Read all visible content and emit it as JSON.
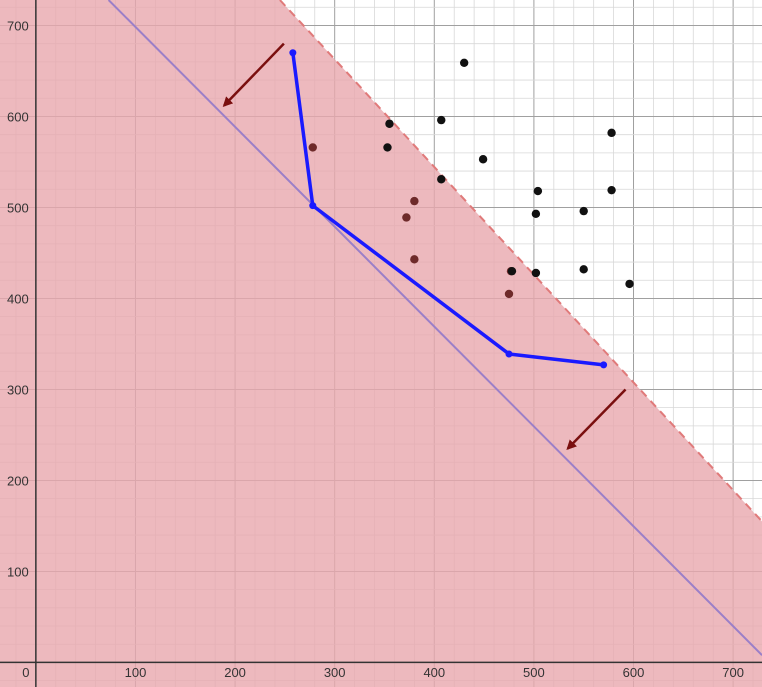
{
  "chart_data": {
    "type": "scatter",
    "title": "",
    "xlabel": "",
    "ylabel": "",
    "xlim": [
      -36,
      729
    ],
    "ylim": [
      -27,
      728
    ],
    "x_ticks": [
      0,
      100,
      200,
      300,
      400,
      500,
      600,
      700
    ],
    "y_ticks": [
      100,
      200,
      300,
      400,
      500,
      600,
      700
    ],
    "x_tick_labels": [
      "0",
      "100",
      "200",
      "300",
      "400",
      "500",
      "600",
      "700"
    ],
    "y_tick_labels": [
      "100",
      "200",
      "300",
      "400",
      "500",
      "600",
      "700"
    ],
    "grid": true,
    "shaded_region": {
      "description": "half-plane below dashed boundary",
      "boundary_line": [
        [
          245,
          728
        ],
        [
          729,
          155
        ]
      ],
      "fill_color": "#e8a8ae",
      "boundary_color": "#e07a7a",
      "boundary_style": "dashed"
    },
    "reference_line": {
      "points": [
        [
          73,
          728
        ],
        [
          729,
          8
        ]
      ],
      "color": "#9b7fc8"
    },
    "arrows": [
      {
        "from": [
          249,
          680
        ],
        "to": [
          189,
          612
        ],
        "color": "#7a0f0f"
      },
      {
        "from": [
          592,
          300
        ],
        "to": [
          534,
          235
        ],
        "color": "#7a0f0f"
      }
    ],
    "frontier": {
      "color": "#1a1aff",
      "points": [
        [
          258,
          670
        ],
        [
          278,
          502
        ],
        [
          475,
          339
        ],
        [
          570,
          327
        ]
      ]
    },
    "points_inside": [
      [
        278,
        566
      ],
      [
        380,
        507
      ],
      [
        372,
        489
      ],
      [
        380,
        443
      ],
      [
        477,
        430
      ],
      [
        475,
        405
      ]
    ],
    "points_outside": [
      [
        430,
        659
      ],
      [
        355,
        592
      ],
      [
        407,
        596
      ],
      [
        353,
        566
      ],
      [
        449,
        553
      ],
      [
        407,
        531
      ],
      [
        504,
        518
      ],
      [
        502,
        493
      ],
      [
        550,
        496
      ],
      [
        578,
        582
      ],
      [
        578,
        519
      ],
      [
        478,
        430
      ],
      [
        502,
        428
      ],
      [
        550,
        432
      ],
      [
        596,
        416
      ]
    ],
    "colors": {
      "inside_point": "#6e2a2a",
      "outside_point": "#111111",
      "axis": "#333333",
      "grid_major": "#a0a0a0",
      "grid_minor": "#d8d8d8"
    }
  }
}
